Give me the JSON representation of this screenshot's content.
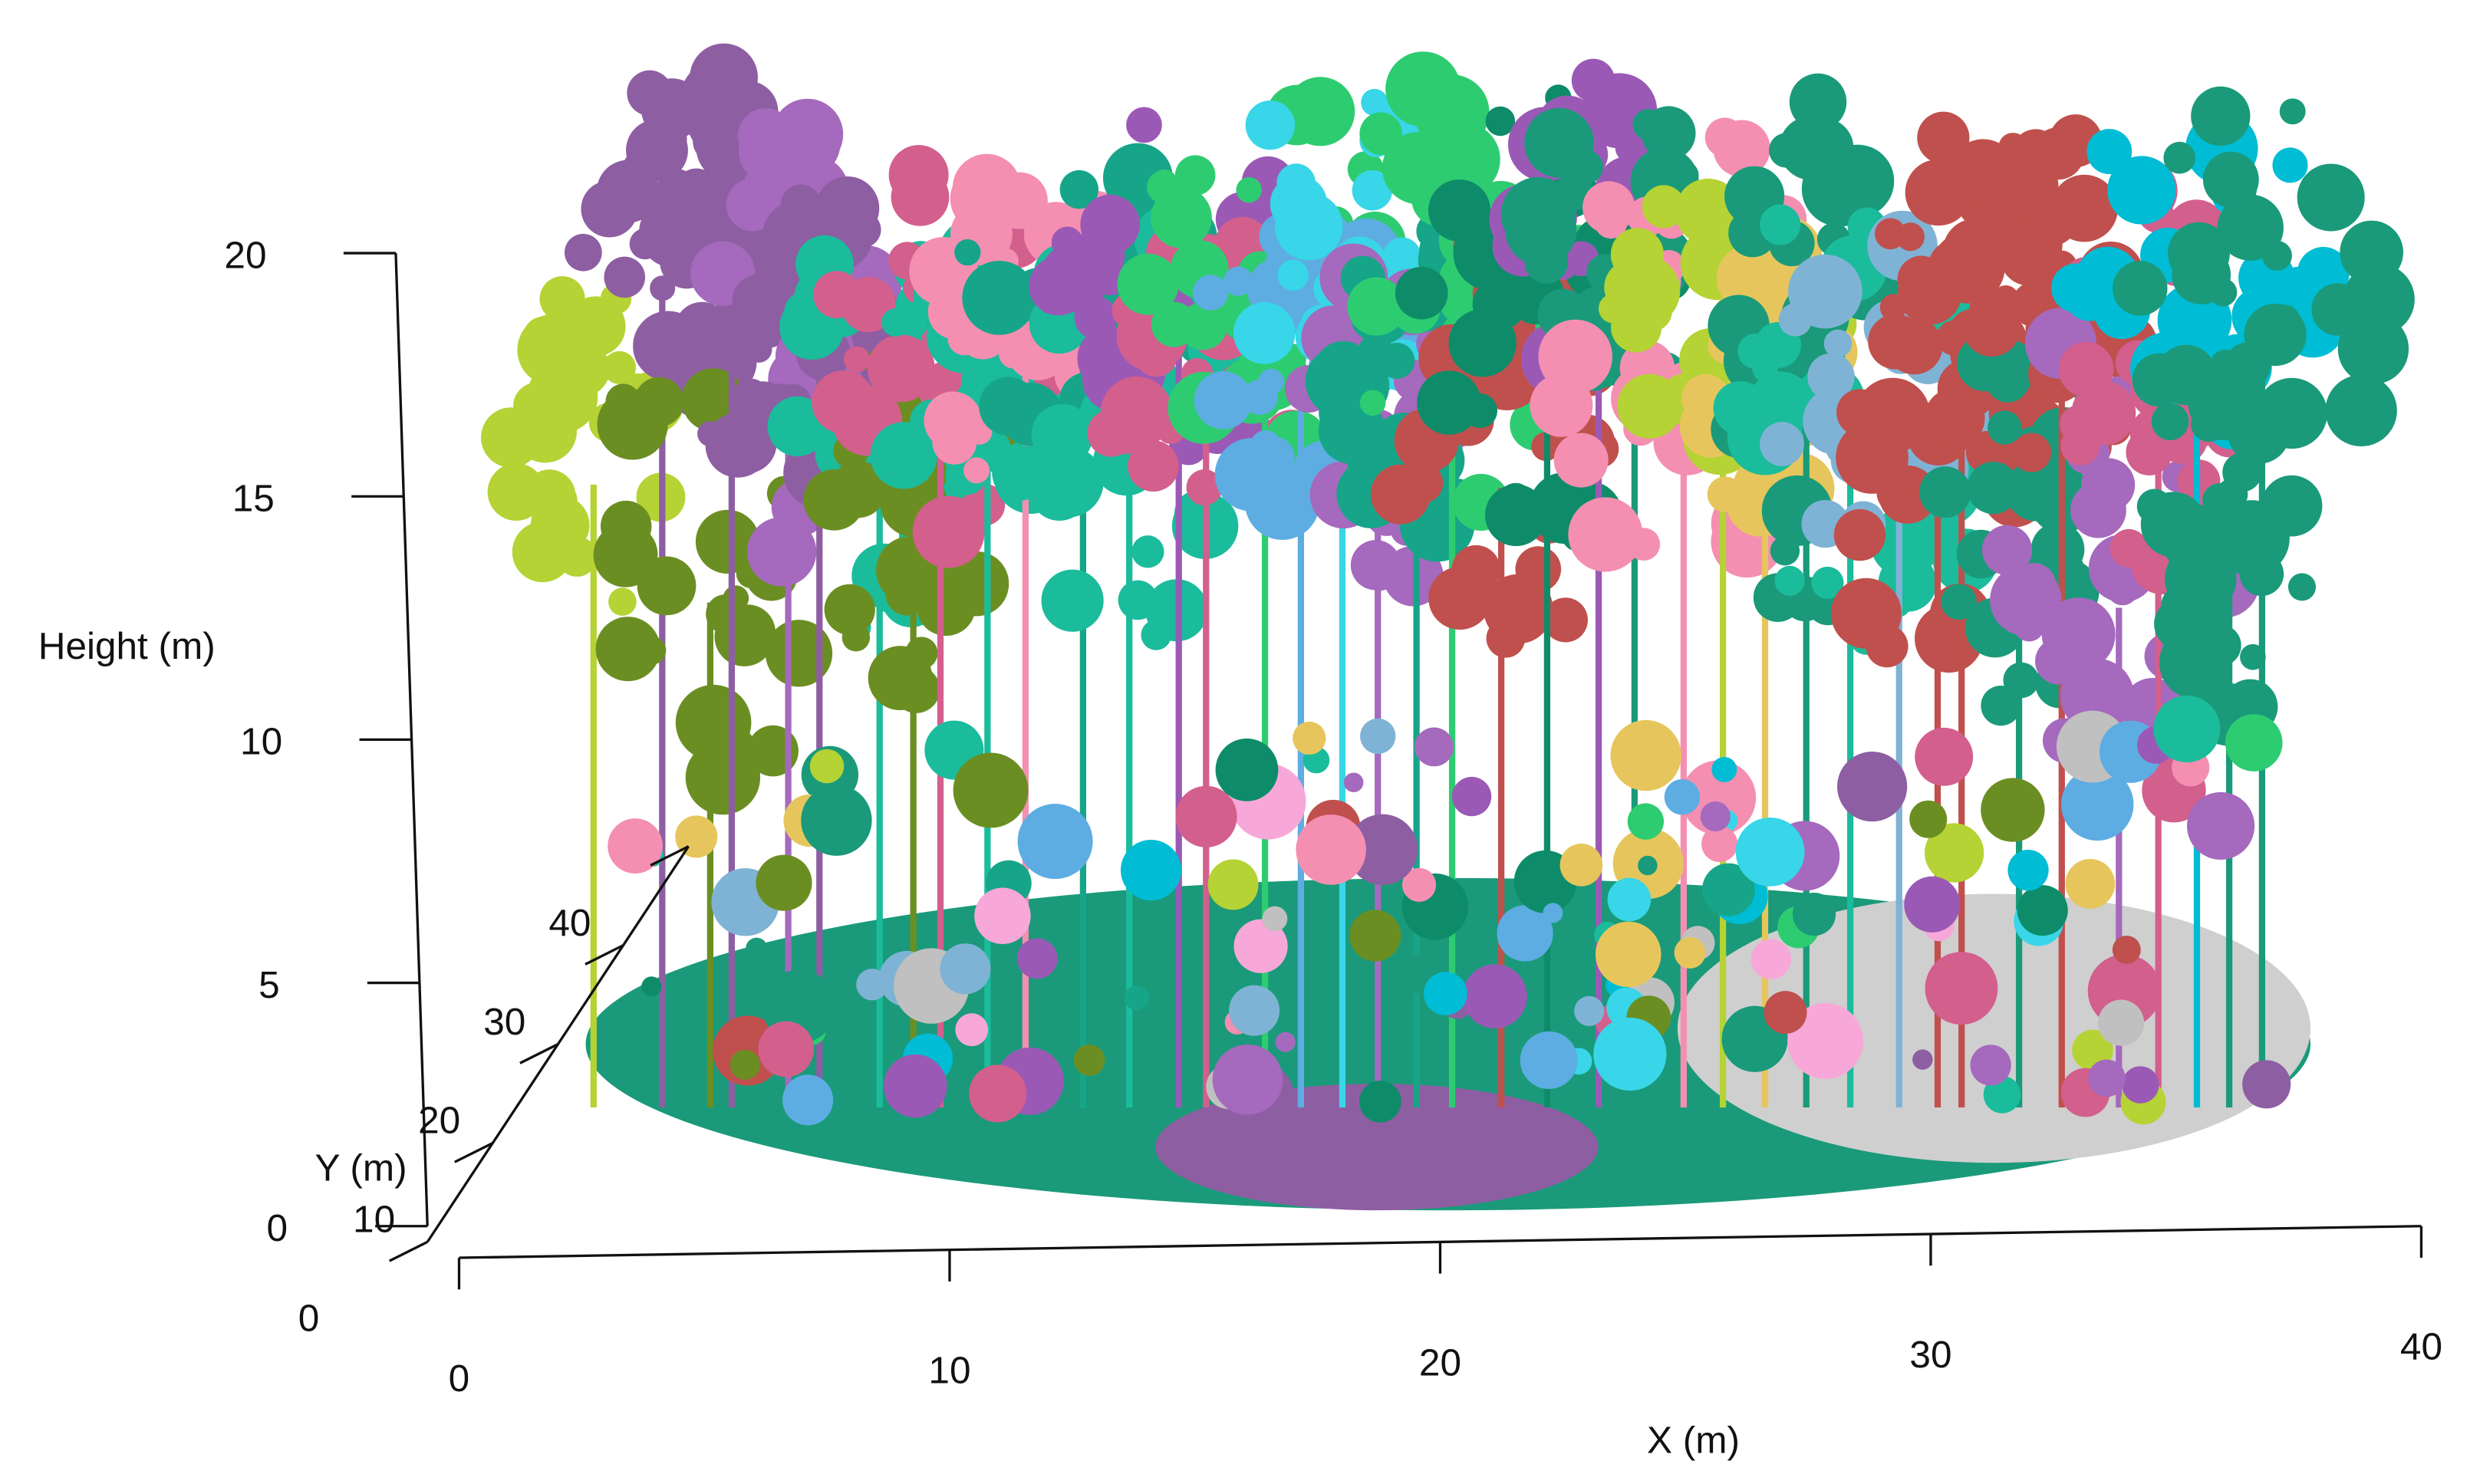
{
  "chart_data": {
    "type": "scatter3d",
    "xlabel": "X (m)",
    "ylabel": "Y (m)",
    "zlabel": "Height (m)",
    "xlim": [
      0,
      40
    ],
    "xticks": [
      0,
      10,
      20,
      30,
      40
    ],
    "ylim": [
      0,
      40
    ],
    "yticks": [
      0,
      10,
      20,
      30,
      40
    ],
    "zlim": [
      0,
      20
    ],
    "zticks": [
      0,
      5,
      10,
      15,
      20
    ]
  }
}
